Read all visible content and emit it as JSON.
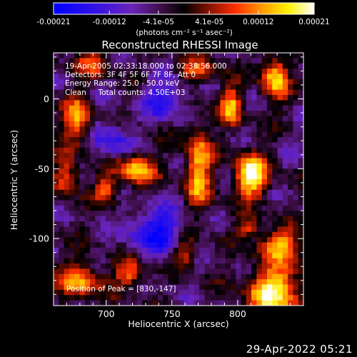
{
  "colorbar": {
    "ticks": [
      "-0.00021",
      "-0.00012",
      "-4.1e-05",
      "4.1e-05",
      "0.00012",
      "0.00021"
    ],
    "tick_values": [
      -0.00021,
      -0.00012,
      -4.1e-05,
      4.1e-05,
      0.00012,
      0.00021
    ],
    "range": [
      -0.00021,
      0.00021
    ],
    "units": "(photons cm⁻² s⁻¹ asec⁻²)",
    "colors": [
      "#0000ff",
      "#5b1fd0",
      "#7a2aa0",
      "#000000",
      "#8a1200",
      "#ff3000",
      "#ff9a00",
      "#fff000",
      "#ffffff"
    ]
  },
  "image": {
    "title": "Reconstructed RHESSI Image",
    "info_lines": [
      "19-Apr-2005 02:33:18.000 to 02:38:56.000",
      "Detectors: 3F 4F 5F 6F 7F 8F, Att 0",
      "Energy Range: 25.0 - 50.0 keV",
      "Clean     Total counts: 4.50E+03"
    ],
    "peak_text": "Position of Peak = [830,-147]"
  },
  "chart_data": {
    "type": "heatmap",
    "title": "Reconstructed RHESSI Image",
    "xlabel": "Heliocentric X (arcsec)",
    "ylabel": "Heliocentric Y (arcsec)",
    "xlim": [
      660,
      850
    ],
    "ylim": [
      -148,
      33
    ],
    "xticks": [
      700,
      750,
      800
    ],
    "yticks": [
      0,
      -50,
      -100
    ],
    "zlim": [
      -0.00021,
      0.00021
    ],
    "peak": [
      830,
      -147
    ],
    "sources": [
      {
        "x": 810,
        "y": -55,
        "amp": 1.0,
        "sx": 9,
        "sy": 11
      },
      {
        "x": 770,
        "y": -50,
        "amp": 0.75,
        "sx": 7,
        "sy": 22
      },
      {
        "x": 795,
        "y": -5,
        "amp": 0.7,
        "sx": 6,
        "sy": 10
      },
      {
        "x": 722,
        "y": -50,
        "amp": 0.75,
        "sx": 11,
        "sy": 8
      },
      {
        "x": 700,
        "y": -65,
        "amp": 0.55,
        "sx": 6,
        "sy": 7
      },
      {
        "x": 677,
        "y": -15,
        "amp": 0.65,
        "sx": 8,
        "sy": 12
      },
      {
        "x": 670,
        "y": -55,
        "amp": 0.55,
        "sx": 7,
        "sy": 10
      },
      {
        "x": 680,
        "y": -130,
        "amp": 0.7,
        "sx": 11,
        "sy": 9
      },
      {
        "x": 718,
        "y": -125,
        "amp": 0.65,
        "sx": 8,
        "sy": 7
      },
      {
        "x": 828,
        "y": -138,
        "amp": 1.0,
        "sx": 14,
        "sy": 12
      },
      {
        "x": 832,
        "y": -105,
        "amp": 0.7,
        "sx": 12,
        "sy": 8
      },
      {
        "x": 828,
        "y": 15,
        "amp": 0.8,
        "sx": 7,
        "sy": 12
      },
      {
        "x": 770,
        "y": 20,
        "amp": 0.55,
        "sx": 10,
        "sy": 6
      },
      {
        "x": 690,
        "y": 25,
        "amp": 0.5,
        "sx": 9,
        "sy": 6
      },
      {
        "x": 760,
        "y": -110,
        "amp": 0.55,
        "sx": 6,
        "sy": 8
      },
      {
        "x": 808,
        "y": -92,
        "amp": 0.5,
        "sx": 6,
        "sy": 5
      },
      {
        "x": 745,
        "y": 0,
        "amp": -0.55,
        "sx": 12,
        "sy": 9
      },
      {
        "x": 740,
        "y": -95,
        "amp": -0.6,
        "sx": 16,
        "sy": 12
      },
      {
        "x": 705,
        "y": -30,
        "amp": -0.45,
        "sx": 10,
        "sy": 10
      }
    ]
  },
  "footer": {
    "timestamp": "29-Apr-2022 05:21"
  }
}
